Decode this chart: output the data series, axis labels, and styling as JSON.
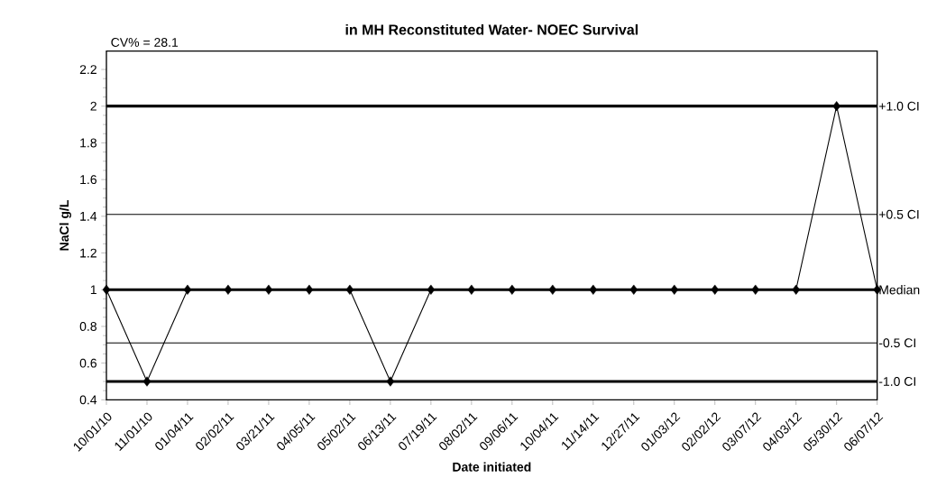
{
  "chart_data": {
    "type": "line",
    "title": "in MH Reconstituted Water- NOEC Survival",
    "xlabel": "Date initiated",
    "ylabel": "NaCl g/L",
    "categories": [
      "10/01/10",
      "11/01/10",
      "01/04/11",
      "02/02/11",
      "03/21/11",
      "04/05/11",
      "05/02/11",
      "06/13/11",
      "07/19/11",
      "08/02/11",
      "09/06/11",
      "10/04/11",
      "11/14/11",
      "12/27/11",
      "01/03/12",
      "02/02/12",
      "03/07/12",
      "04/03/12",
      "05/30/12",
      "06/07/12"
    ],
    "values": [
      1,
      0.5,
      1,
      1,
      1,
      1,
      1,
      0.5,
      1,
      1,
      1,
      1,
      1,
      1,
      1,
      1,
      1,
      1,
      2,
      1
    ],
    "color": "#000000",
    "marker": "diamond",
    "line_style": "solid",
    "ylim": [
      0.4,
      2.3
    ],
    "yticks": [
      0.4,
      0.6,
      0.8,
      1,
      1.2,
      1.4,
      1.6,
      1.8,
      2,
      2.2
    ],
    "grid": false,
    "ref_lines": [
      {
        "axis": "y",
        "value": 2.0,
        "label": "+1.0 CI"
      },
      {
        "axis": "y",
        "value": 1.41,
        "label": "+0.5 CI"
      },
      {
        "axis": "y",
        "value": 1.0,
        "label": "Median"
      },
      {
        "axis": "y",
        "value": 0.71,
        "label": "-0.5 CI"
      },
      {
        "axis": "y",
        "value": 0.5,
        "label": "-1.0 CI"
      }
    ],
    "annotations": [
      "CV% = 28.1"
    ]
  }
}
